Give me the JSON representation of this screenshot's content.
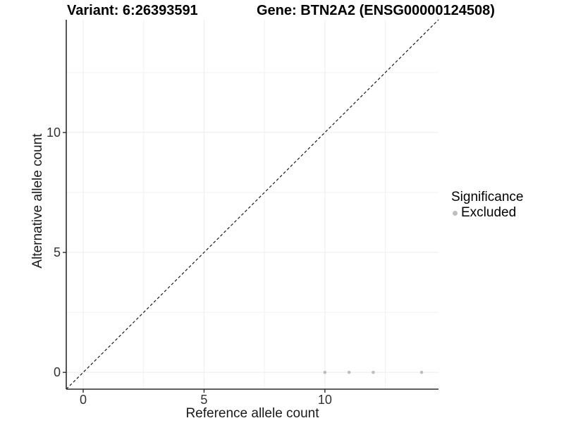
{
  "chart_data": {
    "type": "scatter",
    "titles": {
      "left": "Variant: 6:26393591",
      "right": "Gene: BTN2A2 (ENSG00000124508)"
    },
    "xlabel": "Reference allele count",
    "ylabel": "Alternative allele count",
    "xlim": [
      -0.7,
      14.7
    ],
    "ylim": [
      -0.7,
      14.7
    ],
    "x_ticks": [
      0,
      5,
      10
    ],
    "y_ticks": [
      0,
      5,
      10
    ],
    "x_minor_ticks": [
      2.5,
      7.5,
      12.5
    ],
    "y_minor_ticks": [
      2.5,
      7.5,
      12.5
    ],
    "grid": true,
    "reference_line": {
      "style": "dashed",
      "slope": 1,
      "intercept": 0,
      "color": "#1a1a1a"
    },
    "series": [
      {
        "name": "Excluded",
        "color": "#bebebe",
        "points": [
          {
            "x": 10,
            "y": 0
          },
          {
            "x": 11,
            "y": 0
          },
          {
            "x": 12,
            "y": 0
          },
          {
            "x": 14,
            "y": 0
          }
        ]
      }
    ],
    "legend": {
      "title": "Significance",
      "position": "right",
      "entries": [
        {
          "label": "Excluded",
          "color": "#bebebe"
        }
      ]
    }
  }
}
